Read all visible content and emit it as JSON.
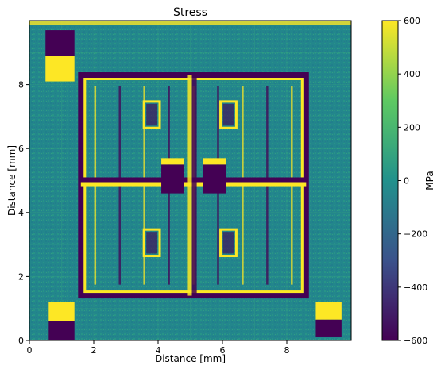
{
  "chart_data": {
    "type": "heatmap",
    "title": "Stress",
    "xlabel": "Distance [mm]",
    "ylabel": "Distance [mm]",
    "xlim": [
      0,
      10
    ],
    "ylim": [
      0,
      10
    ],
    "x_ticks": [
      0,
      2,
      4,
      6,
      8
    ],
    "y_ticks": [
      0,
      2,
      4,
      6,
      8
    ],
    "colorbar": {
      "label": "MPa",
      "min": -600,
      "max": 600,
      "ticks": [
        600,
        400,
        200,
        0,
        -200,
        -400,
        -600
      ],
      "tick_labels": [
        "600",
        "400",
        "200",
        "0",
        "−200",
        "−400",
        "−600"
      ],
      "colormap": [
        "#440154",
        "#3b528b",
        "#21918c",
        "#5ec962",
        "#fde725"
      ]
    },
    "background_level": 0,
    "features": [
      {
        "name": "frame",
        "x": [
          1.6,
          8.6
        ],
        "y": [
          1.4,
          8.3
        ],
        "edge_levels": [
          -600,
          600
        ]
      },
      {
        "name": "cross-horizontal",
        "x": [
          1.6,
          8.6
        ],
        "y": [
          4.8,
          5.1
        ],
        "levels": [
          -600,
          600
        ]
      },
      {
        "name": "cross-vertical",
        "x": [
          4.9,
          5.2
        ],
        "y": [
          1.4,
          8.3
        ],
        "levels": [
          -600,
          600
        ]
      },
      {
        "name": "center-pad-left",
        "x": [
          4.1,
          4.8
        ],
        "y": [
          4.6,
          5.5
        ],
        "level": -600
      },
      {
        "name": "center-pad-right",
        "x": [
          5.4,
          6.1
        ],
        "y": [
          4.6,
          5.5
        ],
        "level": -600
      },
      {
        "name": "corner-pad-top-left",
        "x": [
          0.5,
          1.4
        ],
        "y": [
          8.1,
          9.7
        ],
        "levels": [
          -600,
          600
        ]
      },
      {
        "name": "corner-pad-bottom-left",
        "x": [
          0.6,
          1.4
        ],
        "y": [
          0.0,
          1.2
        ],
        "levels": [
          600,
          -600
        ]
      },
      {
        "name": "corner-pad-bottom-right",
        "x": [
          8.9,
          9.7
        ],
        "y": [
          0.1,
          1.2
        ],
        "levels": [
          600,
          -600
        ]
      }
    ]
  }
}
